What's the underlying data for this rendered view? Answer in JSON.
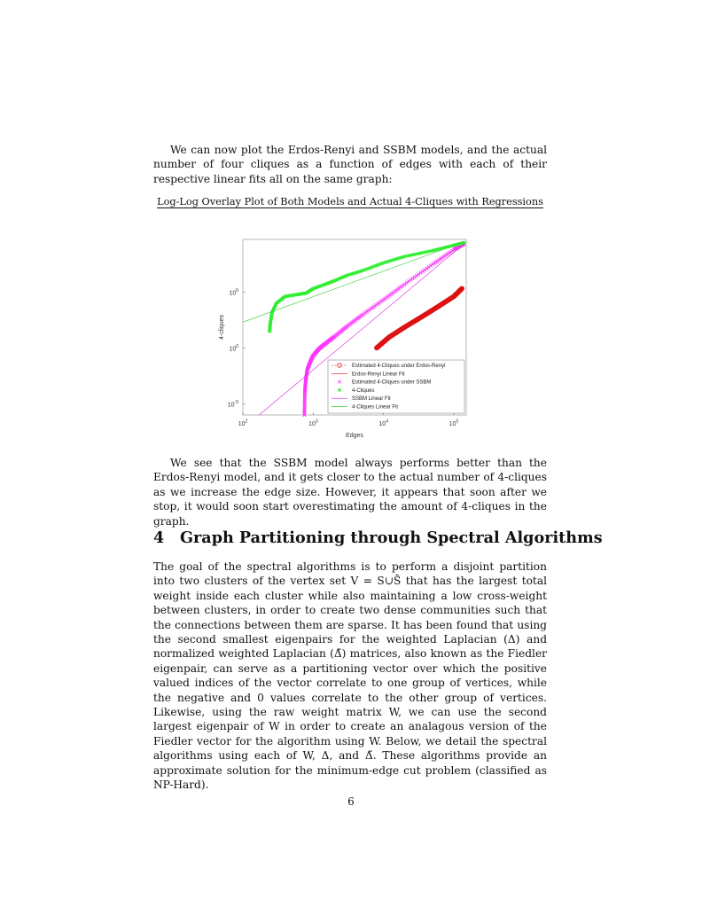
{
  "intro_para": "We can now plot the Erdos-Renyi and SSBM models, and the actual number of four cliques as a function of edges with each of their respective linear fits all on the same graph:",
  "figure_title": "Log-Log Overlay Plot of Both Models and Actual 4-Cliques with Regressions",
  "chart_data": {
    "type": "scatter",
    "title": "",
    "xlabel": "Edges",
    "ylabel": "4-cliques",
    "xscale": "log",
    "yscale": "log",
    "xlim": [
      100,
      150000
    ],
    "ylim": [
      1e-06,
      5000000000
    ],
    "x_tick_labels": [
      "10",
      "10",
      "10",
      "10"
    ],
    "x_tick_exponents": [
      "2",
      "3",
      "4",
      "5"
    ],
    "y_tick_labels": [
      "10",
      "10",
      "10"
    ],
    "y_tick_exponents": [
      "-5",
      "0",
      "5"
    ],
    "legend_position": "bottom-right",
    "grid": false,
    "series": [
      {
        "name": "Estimated 4-Cliques under Erdos-Renyi",
        "color": "#dd1111",
        "marker": "circle",
        "x": [
          8000,
          12000,
          20000,
          35000,
          60000,
          100000,
          130000
        ],
        "y": [
          1,
          9,
          72,
          600,
          5000,
          40000,
          200000
        ]
      },
      {
        "name": "Erdos-Renyi Linear Fit",
        "color": "#dd1111",
        "style": "line",
        "x": [
          8000,
          130000
        ],
        "y": [
          1,
          200000
        ]
      },
      {
        "name": "Estimated 4-Cliques under SSBM",
        "color": "#ff33ff",
        "marker": "x",
        "x": [
          750,
          760,
          780,
          820,
          900,
          1000,
          1200,
          1500,
          2000,
          3000,
          5000,
          10000,
          20000,
          50000,
          100000,
          140000
        ],
        "y": [
          1e-06,
          0.0001,
          0.001,
          0.01,
          0.05,
          0.2,
          0.8,
          2.5,
          10,
          80,
          900,
          20000,
          500000,
          30000000,
          600000000,
          2000000000
        ]
      },
      {
        "name": "4-Cliques",
        "color": "#33ee33",
        "marker": "asterisk",
        "x": [
          240,
          245,
          260,
          300,
          400,
          600,
          800,
          1000,
          1500,
          2000,
          3000,
          5000,
          10000,
          20000,
          50000,
          100000,
          140000
        ],
        "y": [
          30,
          150,
          1500,
          10000,
          40000,
          60000,
          80000,
          200000,
          500000,
          1000000,
          3000000,
          8000000,
          40000000,
          150000000,
          500000000,
          1500000000,
          2500000000
        ]
      },
      {
        "name": "SSBM Linear Fit",
        "color": "#dd22dd",
        "style": "line",
        "x": [
          170,
          140000
        ],
        "y": [
          1e-06,
          2000000000
        ]
      },
      {
        "name": "4-Cliques Linear Fit",
        "color": "#33cc33",
        "style": "line",
        "x": [
          100,
          140000
        ],
        "y": [
          200,
          3000000000
        ]
      }
    ]
  },
  "result_para": "We see that the SSBM model always performs better than the Erdos-Renyi model, and it gets closer to the actual number of 4-cliques as we increase the edge size. However, it appears that soon after we stop, it would soon start overestimating the amount of 4-cliques in the graph.",
  "section": {
    "number": "4",
    "title": "Graph Partitioning through Spectral Algorithms"
  },
  "body_para": "The goal of the spectral algorithms is to perform a disjoint partition into two clusters of the vertex set V = S∪S̄ that has the largest total weight inside each cluster while also maintaining a low cross-weight between clusters, in order to create two dense communities such that the connections between them are sparse. It has been found that using the second smallest eigenpairs for the weighted Laplacian (Δ) and normalized weighted Laplacian (Δ̃) matrices, also known as the Fiedler eigenpair, can serve as a partitioning vector over which the positive valued indices of the vector correlate to one group of vertices, while the negative and 0 values correlate to the other group of vertices. Likewise, using the raw weight matrix W, we can use the second largest eigenpair of W in order to create an analagous version of the Fiedler vector for the algorithm using W. Below, we detail the spectral algorithms using each of W, Δ, and Δ̃. These algorithms provide an approximate solution for the minimum-edge cut problem (classified as NP-Hard).",
  "page_number": "6"
}
